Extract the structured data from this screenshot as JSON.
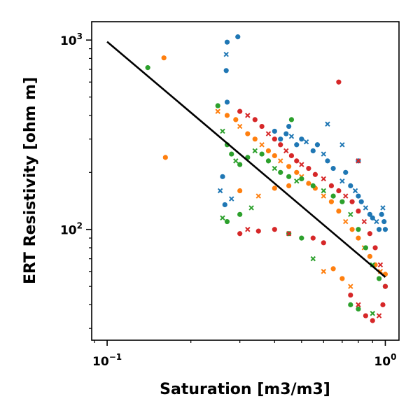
{
  "chart_data": {
    "type": "scatter",
    "title": "",
    "xlabel": "Saturation [m3/m3]",
    "ylabel": "ERT Resistivity [ohm m]",
    "xscale": "log",
    "yscale": "log",
    "xlim": [
      0.088,
      1.12
    ],
    "ylim": [
      26,
      1250
    ],
    "x_ticks": [
      {
        "value": 0.1,
        "base": "10",
        "exp": "−1"
      },
      {
        "value": 1.0,
        "base": "10",
        "exp": "0"
      }
    ],
    "y_ticks": [
      {
        "value": 100,
        "base": "10",
        "exp": "2"
      },
      {
        "value": 1000,
        "base": "10",
        "exp": "3"
      }
    ],
    "grid": false,
    "legend": "none",
    "colors": {
      "blue": "#1f77b4",
      "orange": "#ff7f0e",
      "green": "#2ca02c",
      "red": "#d62728",
      "fit": "#000000"
    },
    "series": [
      {
        "color": "#1f77b4",
        "markers": "dots and crosses",
        "points": [
          [
            0.27,
            975
          ],
          [
            0.295,
            1040
          ],
          [
            0.268,
            840
          ],
          [
            0.268,
            690
          ],
          [
            0.27,
            470
          ],
          [
            0.255,
            160
          ],
          [
            0.26,
            190
          ],
          [
            0.265,
            135
          ],
          [
            0.28,
            145
          ],
          [
            0.42,
            300
          ],
          [
            0.44,
            320
          ],
          [
            0.46,
            310
          ],
          [
            0.48,
            280
          ],
          [
            0.5,
            300
          ],
          [
            0.52,
            290
          ],
          [
            0.55,
            260
          ],
          [
            0.57,
            280
          ],
          [
            0.6,
            250
          ],
          [
            0.62,
            230
          ],
          [
            0.65,
            210
          ],
          [
            0.7,
            180
          ],
          [
            0.72,
            200
          ],
          [
            0.75,
            170
          ],
          [
            0.78,
            160
          ],
          [
            0.8,
            150
          ],
          [
            0.82,
            140
          ],
          [
            0.85,
            130
          ],
          [
            0.88,
            120
          ],
          [
            0.9,
            115
          ],
          [
            0.93,
            110
          ],
          [
            0.95,
            100
          ],
          [
            0.97,
            120
          ],
          [
            0.98,
            130
          ],
          [
            0.99,
            110
          ],
          [
            1.0,
            100
          ],
          [
            0.62,
            360
          ],
          [
            0.45,
            350
          ],
          [
            0.4,
            330
          ],
          [
            0.7,
            280
          ],
          [
            0.8,
            230
          ]
        ]
      },
      {
        "color": "#ff7f0e",
        "markers": "dots and crosses",
        "points": [
          [
            0.16,
            805
          ],
          [
            0.162,
            240
          ],
          [
            0.25,
            420
          ],
          [
            0.27,
            400
          ],
          [
            0.29,
            380
          ],
          [
            0.3,
            350
          ],
          [
            0.32,
            320
          ],
          [
            0.34,
            300
          ],
          [
            0.36,
            280
          ],
          [
            0.38,
            260
          ],
          [
            0.4,
            245
          ],
          [
            0.42,
            230
          ],
          [
            0.45,
            215
          ],
          [
            0.48,
            200
          ],
          [
            0.5,
            190
          ],
          [
            0.53,
            175
          ],
          [
            0.56,
            165
          ],
          [
            0.6,
            150
          ],
          [
            0.64,
            140
          ],
          [
            0.68,
            125
          ],
          [
            0.72,
            110
          ],
          [
            0.76,
            100
          ],
          [
            0.8,
            90
          ],
          [
            0.84,
            80
          ],
          [
            0.88,
            72
          ],
          [
            0.92,
            65
          ],
          [
            0.96,
            60
          ],
          [
            1.0,
            58
          ],
          [
            0.3,
            160
          ],
          [
            0.35,
            150
          ],
          [
            0.4,
            165
          ],
          [
            0.45,
            170
          ],
          [
            0.6,
            60
          ],
          [
            0.65,
            62
          ],
          [
            0.7,
            55
          ],
          [
            0.75,
            50
          ]
        ]
      },
      {
        "color": "#2ca02c",
        "markers": "dots and crosses",
        "points": [
          [
            0.14,
            715
          ],
          [
            0.25,
            450
          ],
          [
            0.26,
            330
          ],
          [
            0.27,
            280
          ],
          [
            0.28,
            250
          ],
          [
            0.29,
            230
          ],
          [
            0.3,
            220
          ],
          [
            0.32,
            240
          ],
          [
            0.34,
            260
          ],
          [
            0.36,
            250
          ],
          [
            0.38,
            230
          ],
          [
            0.4,
            210
          ],
          [
            0.42,
            200
          ],
          [
            0.45,
            190
          ],
          [
            0.48,
            180
          ],
          [
            0.5,
            185
          ],
          [
            0.55,
            170
          ],
          [
            0.6,
            160
          ],
          [
            0.65,
            150
          ],
          [
            0.7,
            140
          ],
          [
            0.75,
            120
          ],
          [
            0.8,
            100
          ],
          [
            0.85,
            80
          ],
          [
            0.9,
            65
          ],
          [
            0.95,
            55
          ],
          [
            1.0,
            50
          ],
          [
            0.26,
            115
          ],
          [
            0.27,
            110
          ],
          [
            0.3,
            120
          ],
          [
            0.33,
            130
          ],
          [
            0.45,
            95
          ],
          [
            0.5,
            90
          ],
          [
            0.55,
            70
          ],
          [
            0.75,
            40
          ],
          [
            0.8,
            38
          ],
          [
            0.9,
            36
          ],
          [
            0.46,
            380
          ]
        ]
      },
      {
        "color": "#d62728",
        "markers": "dots and crosses",
        "points": [
          [
            0.68,
            600
          ],
          [
            0.3,
            420
          ],
          [
            0.32,
            400
          ],
          [
            0.34,
            380
          ],
          [
            0.36,
            350
          ],
          [
            0.38,
            320
          ],
          [
            0.4,
            300
          ],
          [
            0.42,
            280
          ],
          [
            0.44,
            260
          ],
          [
            0.46,
            245
          ],
          [
            0.48,
            230
          ],
          [
            0.5,
            220
          ],
          [
            0.53,
            210
          ],
          [
            0.56,
            195
          ],
          [
            0.6,
            185
          ],
          [
            0.64,
            170
          ],
          [
            0.68,
            160
          ],
          [
            0.72,
            150
          ],
          [
            0.76,
            140
          ],
          [
            0.8,
            125
          ],
          [
            0.84,
            110
          ],
          [
            0.88,
            95
          ],
          [
            0.92,
            80
          ],
          [
            0.96,
            65
          ],
          [
            1.0,
            50
          ],
          [
            0.3,
            95
          ],
          [
            0.32,
            100
          ],
          [
            0.35,
            98
          ],
          [
            0.4,
            100
          ],
          [
            0.45,
            95
          ],
          [
            0.55,
            90
          ],
          [
            0.6,
            85
          ],
          [
            0.8,
            40
          ],
          [
            0.85,
            35
          ],
          [
            0.9,
            33
          ],
          [
            0.95,
            35
          ],
          [
            0.98,
            40
          ],
          [
            0.75,
            45
          ],
          [
            0.8,
            230
          ]
        ]
      }
    ],
    "fit_line": {
      "color": "#000000",
      "x": [
        0.1,
        1.0
      ],
      "y": [
        980,
        56
      ]
    }
  }
}
